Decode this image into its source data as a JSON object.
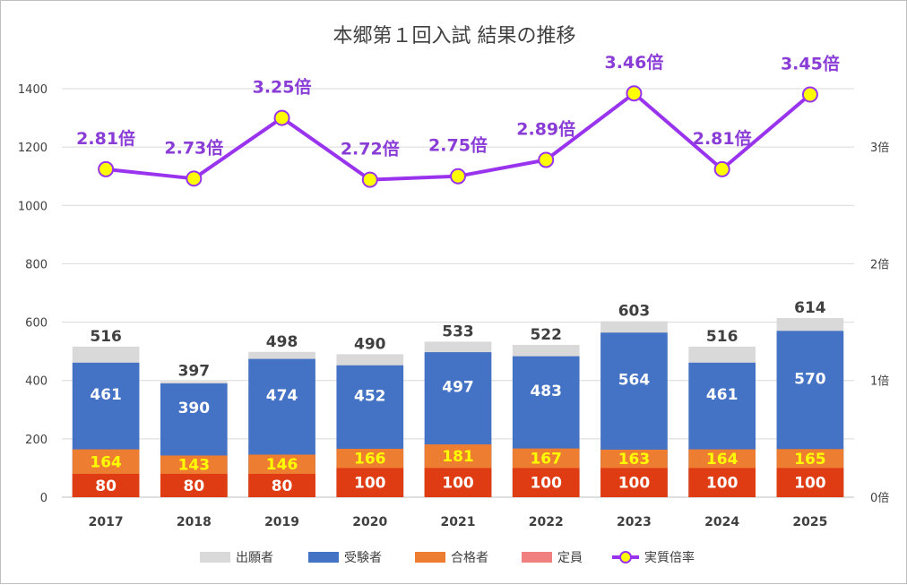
{
  "chart_data": {
    "type": "bar",
    "title": "本郷第１回入試 結果の推移",
    "categories": [
      "2017",
      "2018",
      "2019",
      "2020",
      "2021",
      "2022",
      "2023",
      "2024",
      "2025"
    ],
    "yticks": [
      "0",
      "200",
      "400",
      "600",
      "800",
      "1000",
      "1200",
      "1400"
    ],
    "y2ticks": [
      "0倍",
      "1倍",
      "2倍",
      "3倍"
    ],
    "ylim": [
      0,
      1400
    ],
    "y2lim": [
      0,
      3.5
    ],
    "grid": true,
    "legend_position": "bottom",
    "series": [
      {
        "name": "出願者",
        "kind": "bar",
        "color": "#d9d9d9",
        "values": [
          516,
          397,
          498,
          490,
          533,
          522,
          603,
          516,
          614
        ],
        "labels": [
          "516",
          "397",
          "498",
          "490",
          "533",
          "522",
          "603",
          "516",
          "614"
        ]
      },
      {
        "name": "受験者",
        "kind": "bar",
        "color": "#4472c4",
        "values": [
          461,
          390,
          474,
          452,
          497,
          483,
          564,
          461,
          570
        ],
        "labels": [
          "461",
          "390",
          "474",
          "452",
          "497",
          "483",
          "564",
          "461",
          "570"
        ]
      },
      {
        "name": "合格者",
        "kind": "bar",
        "color": "#ed7d31",
        "values": [
          164,
          143,
          146,
          166,
          181,
          167,
          163,
          164,
          165
        ],
        "labels": [
          "164",
          "143",
          "146",
          "166",
          "181",
          "167",
          "163",
          "164",
          "165"
        ]
      },
      {
        "name": "定員",
        "kind": "bar",
        "color": "#e03c14",
        "legend_color": "#f08080",
        "values": [
          80,
          80,
          80,
          100,
          100,
          100,
          100,
          100,
          100
        ],
        "labels": [
          "80",
          "80",
          "80",
          "100",
          "100",
          "100",
          "100",
          "100",
          "100"
        ]
      },
      {
        "name": "実質倍率",
        "kind": "line",
        "axis": "right",
        "color": "#9933ee",
        "marker_color": "#ffff00",
        "values": [
          2.81,
          2.73,
          3.25,
          2.72,
          2.75,
          2.89,
          3.46,
          2.81,
          3.45
        ],
        "labels": [
          "2.81倍",
          "2.73倍",
          "3.25倍",
          "2.72倍",
          "2.75倍",
          "2.89倍",
          "3.46倍",
          "2.81倍",
          "3.45倍"
        ]
      }
    ]
  }
}
